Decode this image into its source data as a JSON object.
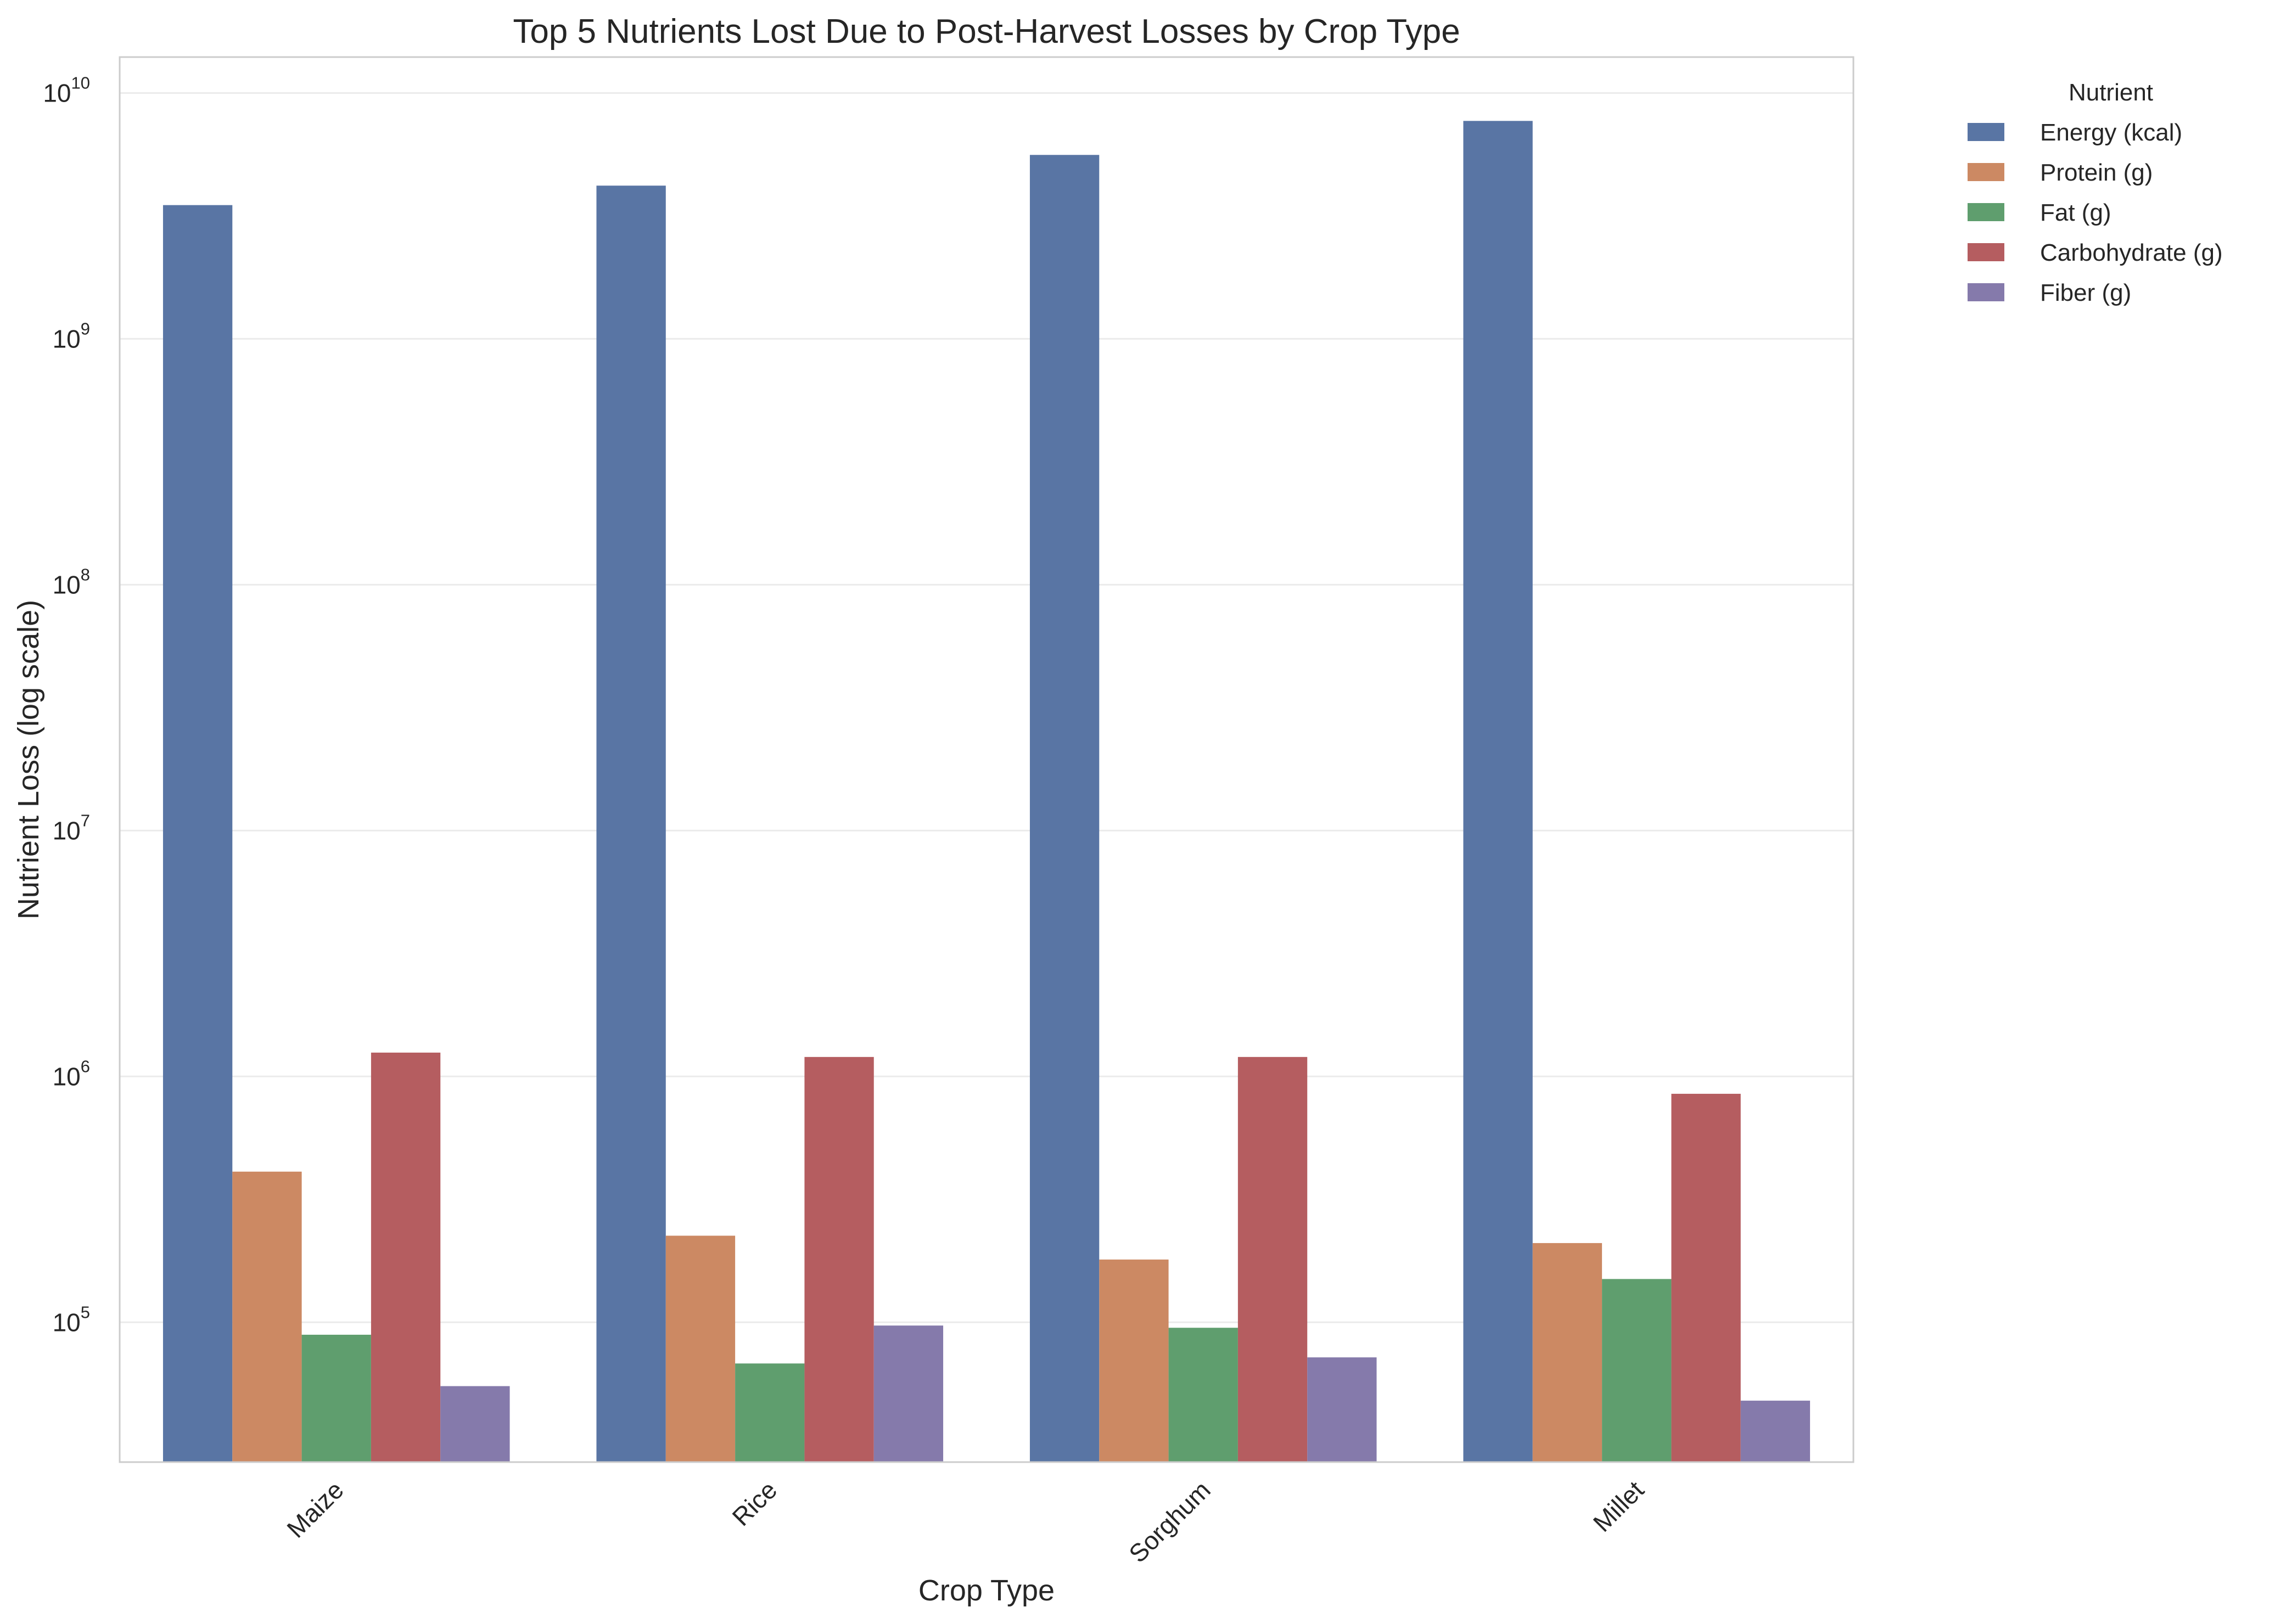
{
  "chart_data": {
    "type": "bar",
    "title": "Top 5 Nutrients Lost Due to Post-Harvest Losses by Crop Type",
    "xlabel": "Crop Type",
    "ylabel": "Nutrient Loss (log scale)",
    "yscale": "log",
    "ylim": [
      27000,
      14000000000
    ],
    "yticks": [
      {
        "base": "10",
        "exp": "5",
        "value": 100000
      },
      {
        "base": "10",
        "exp": "6",
        "value": 1000000
      },
      {
        "base": "10",
        "exp": "7",
        "value": 10000000
      },
      {
        "base": "10",
        "exp": "8",
        "value": 100000000
      },
      {
        "base": "10",
        "exp": "9",
        "value": 1000000000
      },
      {
        "base": "10",
        "exp": "10",
        "value": 10000000000
      }
    ],
    "grid": "horizontal",
    "categories": [
      "Maize",
      "Rice",
      "Sorghum",
      "Millet"
    ],
    "legend": {
      "title": "Nutrient",
      "placement": "outside-right"
    },
    "series": [
      {
        "name": "Energy (kcal)",
        "color": "#5975a4",
        "values": [
          3500000000,
          4200000000,
          5600000000,
          7700000000
        ]
      },
      {
        "name": "Protein (g)",
        "color": "#cc8963",
        "values": [
          410000,
          225000,
          180000,
          210000
        ]
      },
      {
        "name": "Fat (g)",
        "color": "#5f9e6e",
        "values": [
          89000,
          68000,
          95000,
          150000
        ]
      },
      {
        "name": "Carbohydrate (g)",
        "color": "#b55d60",
        "values": [
          1250000,
          1200000,
          1200000,
          850000
        ]
      },
      {
        "name": "Fiber (g)",
        "color": "#857aab",
        "values": [
          55000,
          97000,
          72000,
          48000
        ]
      }
    ]
  }
}
